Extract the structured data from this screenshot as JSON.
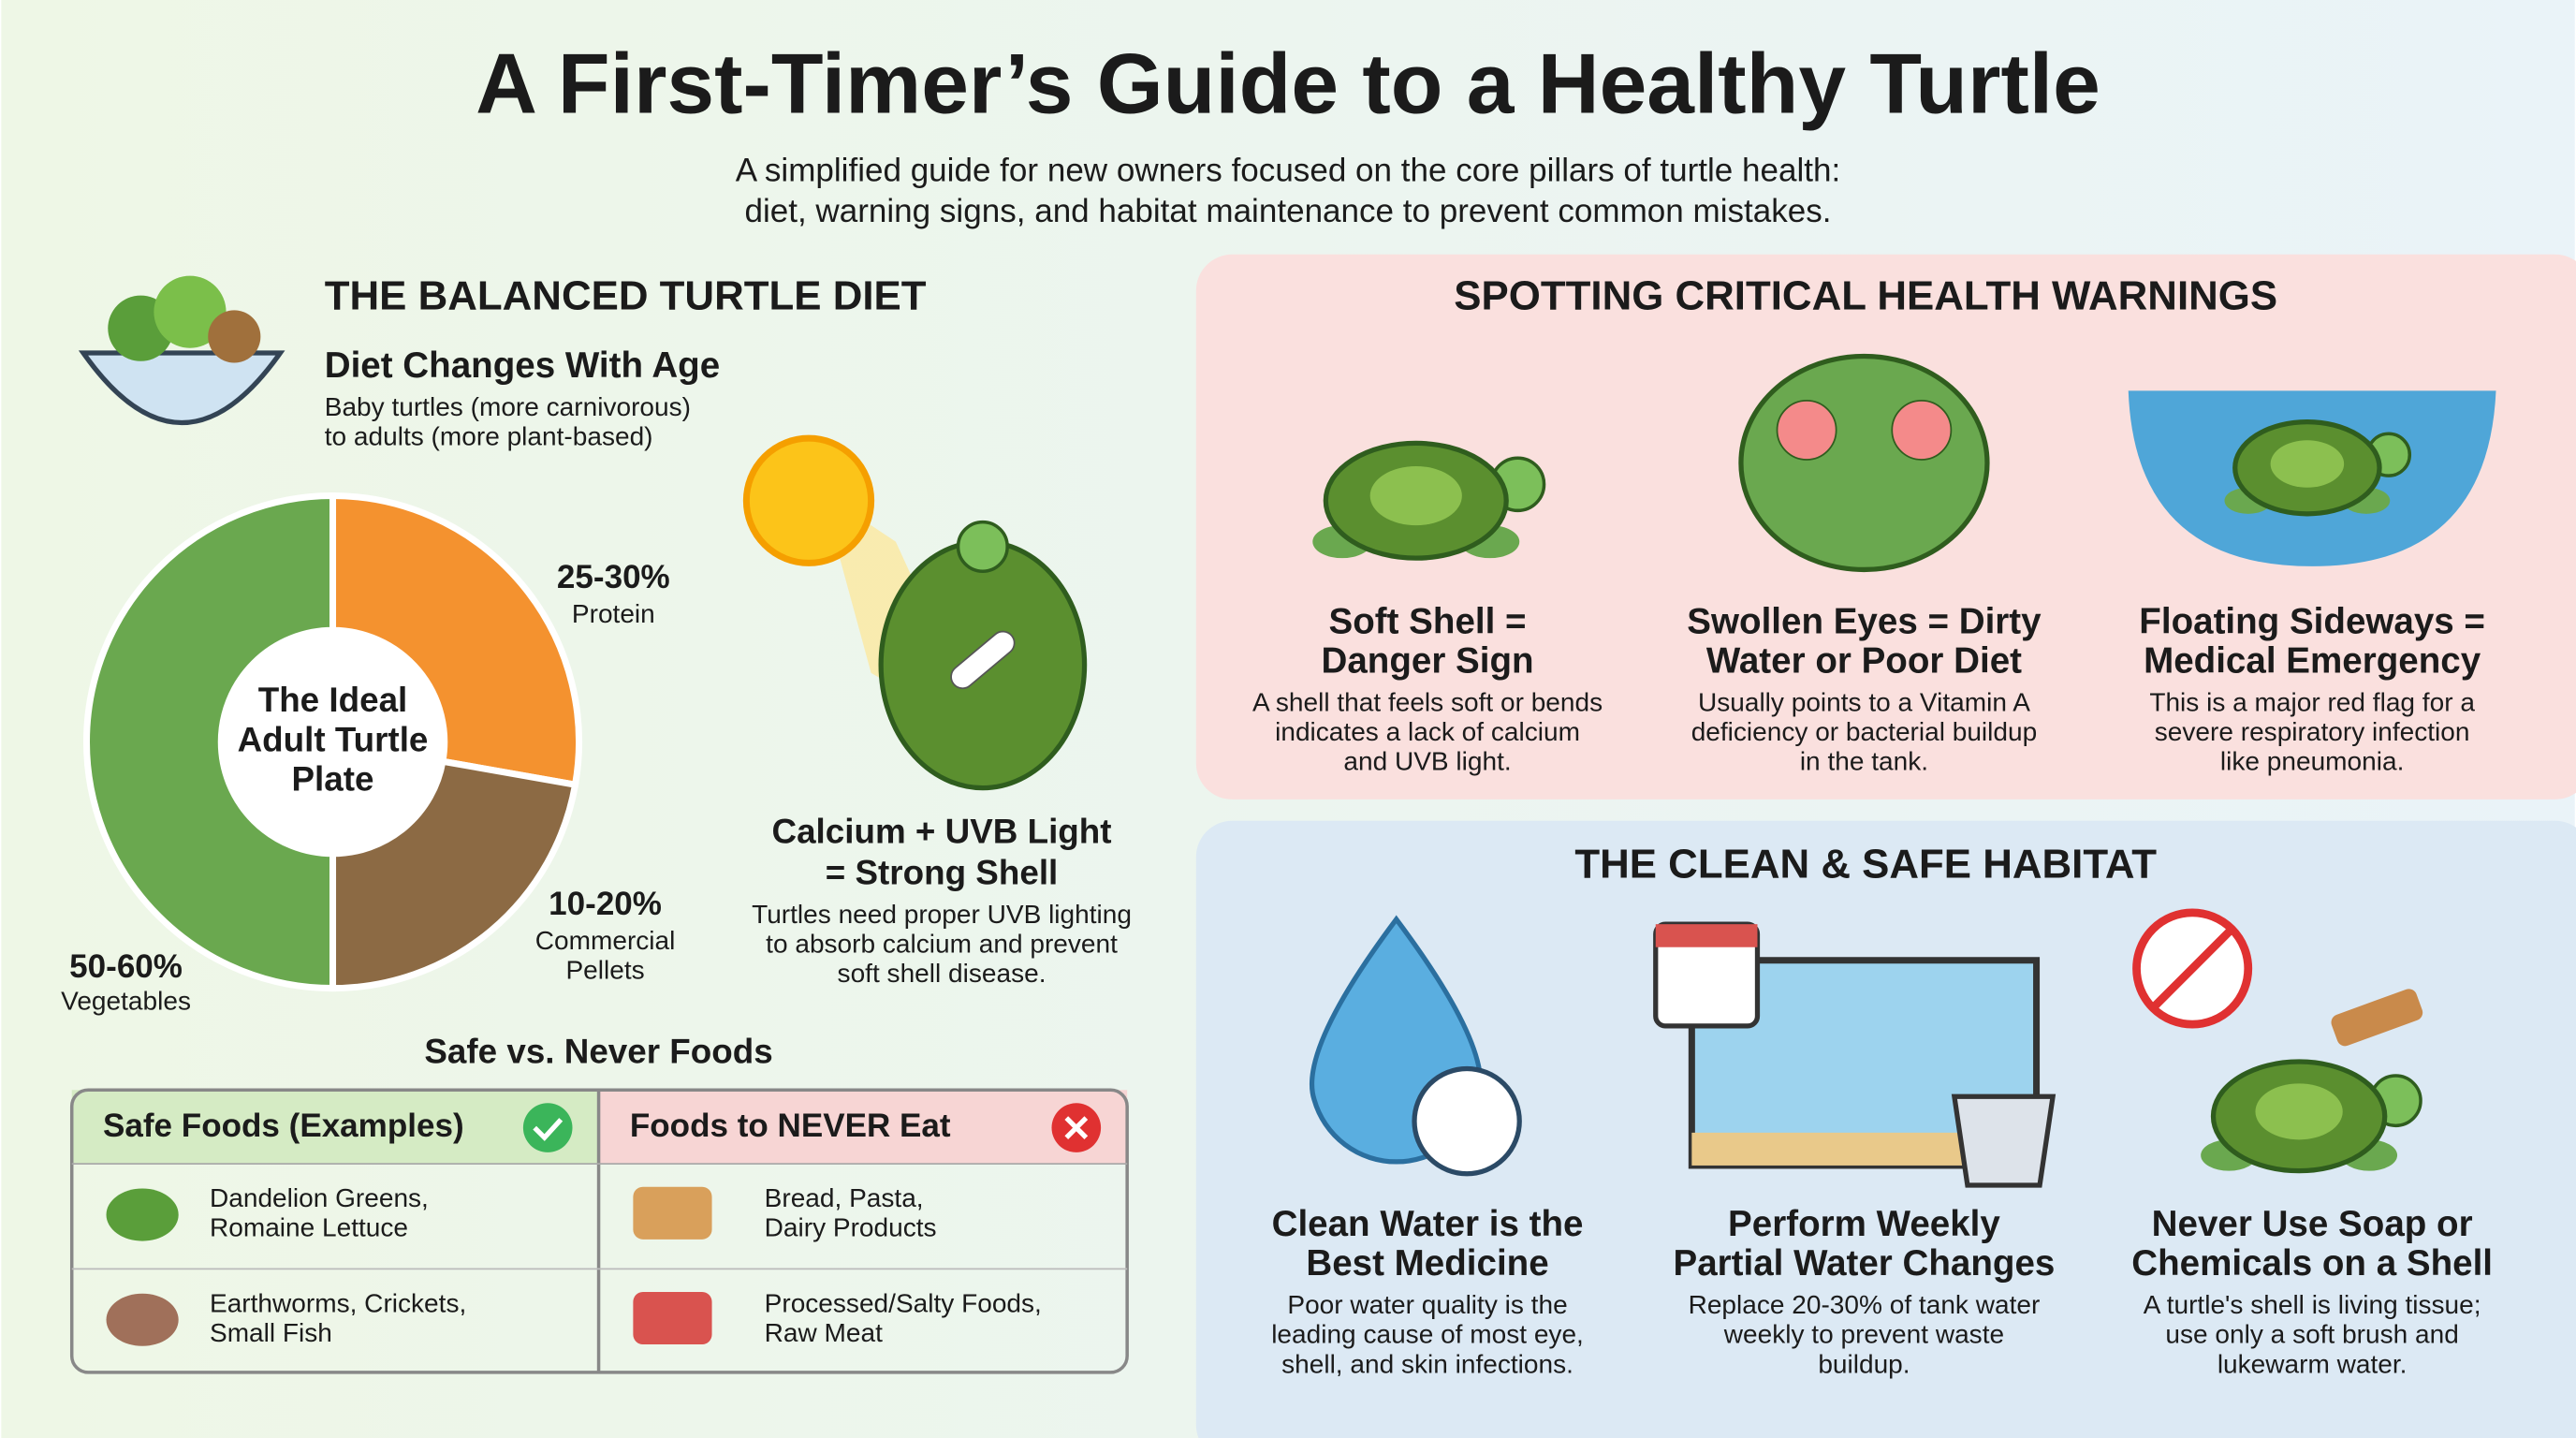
{
  "header": {
    "title": "A First-Timer’s Guide to a Healthy Turtle",
    "subtitle": [
      "A simplified guide for new owners focused on the core pillars of turtle health:",
      "diet, warning signs, and habitat maintenance to prevent common mistakes."
    ]
  },
  "diet": {
    "heading": "THE BALANCED TURTLE DIET",
    "age_title": "Diet Changes With Age",
    "age_text": [
      "Baby turtles (more carnivorous)",
      "to adults (more plant-based)"
    ],
    "plate": {
      "center": [
        "The Ideal",
        "Adult Turtle",
        "Plate"
      ],
      "protein": {
        "value": "25-30%",
        "name": [
          "Protein"
        ]
      },
      "pellets": {
        "value": "10-20%",
        "name": [
          "Commercial",
          "Pellets"
        ]
      },
      "vegetables": {
        "value": "50-60%",
        "name": [
          "Vegetables"
        ]
      }
    },
    "calcium": {
      "title": [
        "Calcium + UVB Light",
        "= Strong Shell"
      ],
      "text": [
        "Turtles need proper UVB lighting",
        "to absorb calcium and prevent",
        "soft shell disease."
      ]
    }
  },
  "foods": {
    "heading": "Safe vs. Never Foods",
    "safe_header": "Safe Foods (Examples)",
    "never_header": "Foods to NEVER Eat",
    "rows": [
      [
        [
          "Dandelion Greens,",
          "Romaine Lettuce"
        ],
        [
          "Bread, Pasta,",
          "Dairy Products"
        ]
      ],
      [
        [
          "Earthworms, Crickets,",
          "Small Fish"
        ],
        [
          "Processed/Salty Foods,",
          "Raw Meat"
        ]
      ]
    ]
  },
  "warnings": {
    "heading": "SPOTTING CRITICAL HEALTH WARNINGS",
    "items": [
      {
        "title": [
          "Soft Shell =",
          "Danger Sign"
        ],
        "text": [
          "A shell that feels soft or bends",
          "indicates a lack of calcium",
          "and UVB light."
        ]
      },
      {
        "title": [
          "Swollen Eyes = Dirty",
          "Water or Poor Diet"
        ],
        "text": [
          "Usually points to a Vitamin A",
          "deficiency or bacterial buildup",
          "in the tank."
        ]
      },
      {
        "title": [
          "Floating Sideways =",
          "Medical Emergency"
        ],
        "text": [
          "This is a major red flag for a",
          "severe respiratory infection",
          "like pneumonia."
        ]
      }
    ]
  },
  "habitat": {
    "heading": "THE CLEAN & SAFE HABITAT",
    "items": [
      {
        "title": [
          "Clean Water is the",
          "Best Medicine"
        ],
        "text": [
          "Poor water quality is the",
          "leading cause of most eye,",
          "shell, and skin infections."
        ]
      },
      {
        "title": [
          "Perform Weekly",
          "Partial Water Changes"
        ],
        "text": [
          "Replace 20-30% of tank water",
          "weekly to prevent waste",
          "buildup."
        ]
      },
      {
        "title": [
          "Never Use Soap or",
          "Chemicals on a Shell"
        ],
        "text": [
          "A turtle's shell is living tissue;",
          "use only a soft brush and",
          "lukewarm water."
        ]
      }
    ]
  }
}
